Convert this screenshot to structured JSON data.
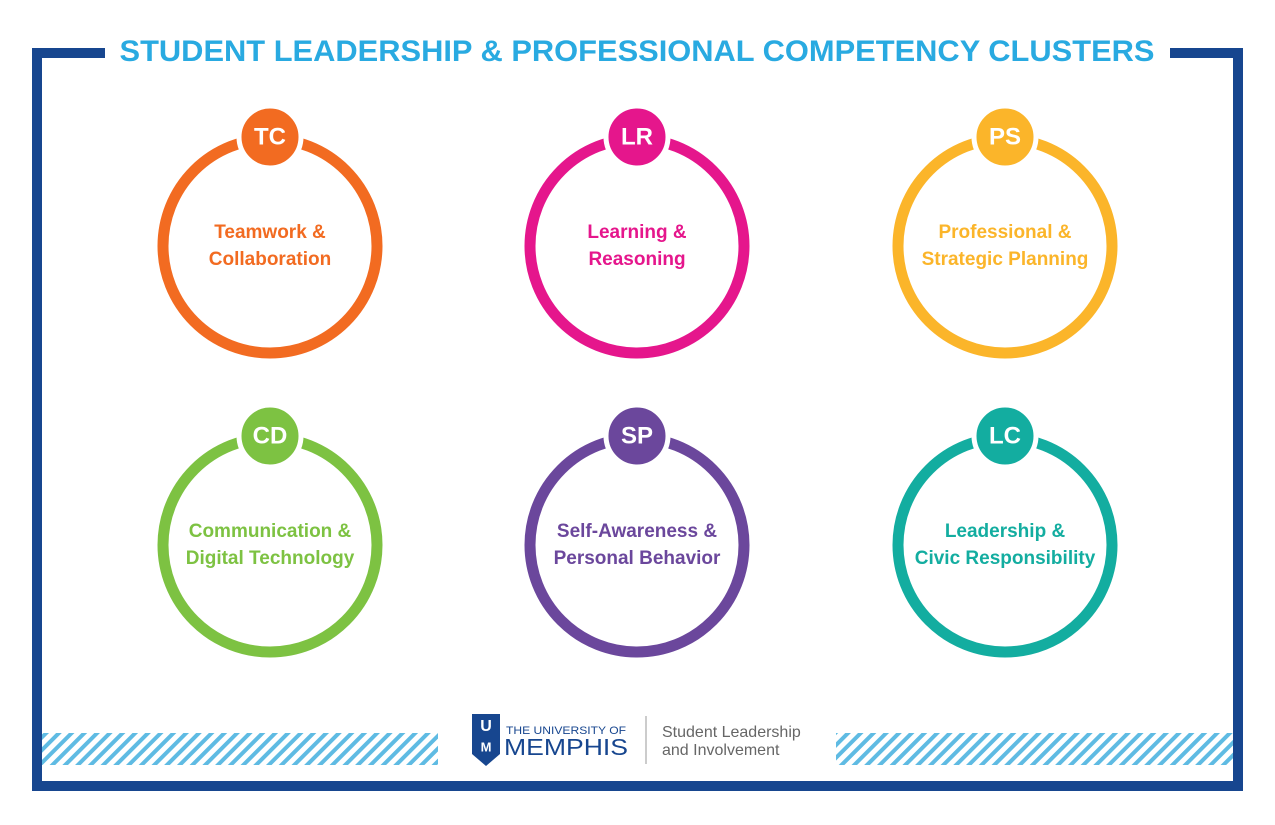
{
  "title": "STUDENT LEADERSHIP & PROFESSIONAL COMPETENCY CLUSTERS",
  "clusters": [
    {
      "abbr": "TC",
      "lines": [
        "Teamwork &",
        "Collaboration"
      ],
      "color": "#f26b21"
    },
    {
      "abbr": "LR",
      "lines": [
        "Learning &",
        "Reasoning"
      ],
      "color": "#e5168c"
    },
    {
      "abbr": "PS",
      "lines": [
        "Professional &",
        "Strategic Planning"
      ],
      "color": "#fbb52a"
    },
    {
      "abbr": "CD",
      "lines": [
        "Communication &",
        "Digital Technology"
      ],
      "color": "#7dc242"
    },
    {
      "abbr": "SP",
      "lines": [
        "Self-Awareness &",
        "Personal Behavior"
      ],
      "color": "#6b479c"
    },
    {
      "abbr": "LC",
      "lines": [
        "Leadership &",
        "Civic Responsibility"
      ],
      "color": "#13ada0"
    }
  ],
  "footer": {
    "mark": [
      "U",
      "M"
    ],
    "university_prefix": "THE UNIVERSITY OF",
    "university": "MEMPHIS",
    "department": [
      "Student Leadership",
      "and Involvement"
    ]
  }
}
